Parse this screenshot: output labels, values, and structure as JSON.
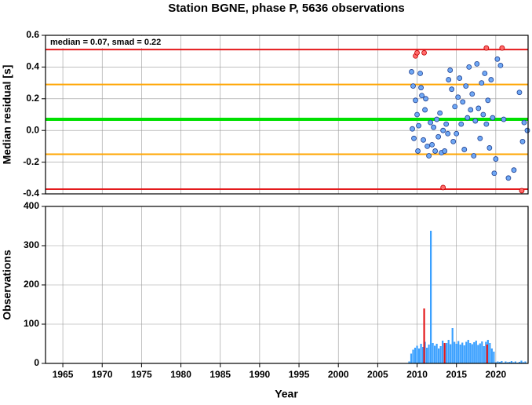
{
  "chart_data": [
    {
      "type": "scatter",
      "title": "Station BGNE, phase P, 5636 observations",
      "ylabel": "Median residual [s]",
      "annotation": "median = 0.07, smad = 0.22",
      "xlim": [
        1962.8,
        2024.1
      ],
      "ylim": [
        -0.4,
        0.6
      ],
      "yticks": [
        -0.4,
        -0.2,
        {
          "value": 0,
          "label": "0.0"
        },
        0.2,
        0.4,
        0.6
      ],
      "grid": true,
      "hlines": [
        {
          "value": 0.51,
          "color": "#e41a1c"
        },
        {
          "value": 0.29,
          "color": "#ffa500"
        },
        {
          "value": 0.07,
          "color": "#00e000"
        },
        {
          "value": -0.15,
          "color": "#ffa500"
        },
        {
          "value": -0.37,
          "color": "#e41a1c"
        }
      ],
      "series": [
        {
          "color": "#6fa8f5",
          "edgecolor": "#1f3f8f",
          "x": [
            2009.3,
            2009.4,
            2009.5,
            2009.6,
            2009.8,
            2010.0,
            2010.1,
            2010.2,
            2010.4,
            2010.5,
            2010.6,
            2010.8,
            2011.0,
            2011.1,
            2011.3,
            2011.5,
            2011.7,
            2011.9,
            2012.1,
            2012.3,
            2012.5,
            2012.7,
            2012.9,
            2013.1,
            2013.3,
            2013.5,
            2013.7,
            2013.9,
            2014.0,
            2014.2,
            2014.4,
            2014.6,
            2014.8,
            2015.0,
            2015.2,
            2015.4,
            2015.6,
            2015.8,
            2016.0,
            2016.2,
            2016.4,
            2016.6,
            2016.8,
            2017.0,
            2017.2,
            2017.4,
            2017.6,
            2017.8,
            2018.0,
            2018.2,
            2018.4,
            2018.6,
            2018.8,
            2019.0,
            2019.2,
            2019.4,
            2019.6,
            2019.8,
            2020.0,
            2020.2,
            2020.6,
            2021.0,
            2021.6,
            2022.3,
            2023.0,
            2023.4,
            2023.6,
            2024.0
          ],
          "values": [
            0.37,
            0.01,
            0.28,
            -0.05,
            0.19,
            0.1,
            -0.13,
            0.03,
            0.36,
            0.27,
            0.22,
            -0.06,
            0.13,
            0.2,
            -0.1,
            -0.16,
            0.05,
            -0.09,
            0.02,
            -0.13,
            0.07,
            -0.04,
            0.11,
            -0.14,
            0.0,
            -0.13,
            0.04,
            -0.02,
            0.32,
            0.38,
            0.26,
            -0.07,
            0.15,
            -0.02,
            0.21,
            0.33,
            0.04,
            0.18,
            -0.12,
            0.28,
            0.08,
            0.4,
            0.13,
            0.23,
            -0.16,
            0.06,
            0.42,
            0.14,
            -0.05,
            0.3,
            0.1,
            0.36,
            0.04,
            0.19,
            -0.11,
            0.32,
            0.08,
            -0.27,
            -0.18,
            0.45,
            0.41,
            0.07,
            -0.3,
            -0.25,
            0.24,
            -0.07,
            0.05,
            0.0
          ]
        },
        {
          "color": "#ff6b6b",
          "edgecolor": "#c00000",
          "x": [
            2009.8,
            2010.0,
            2010.9,
            2013.3,
            2018.8,
            2020.8,
            2023.3
          ],
          "values": [
            0.47,
            0.49,
            0.49,
            -0.36,
            0.52,
            0.52,
            -0.38
          ]
        }
      ]
    },
    {
      "type": "bar",
      "ylabel": "Observations",
      "xlabel": "Year",
      "xlim": [
        1962.8,
        2024.1
      ],
      "ylim": [
        0,
        400
      ],
      "yticks": [
        0,
        100,
        200,
        300,
        400
      ],
      "xticks": [
        1965,
        1970,
        1975,
        1980,
        1985,
        1990,
        1995,
        2000,
        2005,
        2010,
        2015,
        2020
      ],
      "grid": true,
      "series": [
        {
          "color": "#3aa0ff",
          "x": [
            2009.0,
            2009.25,
            2009.5,
            2009.75,
            2010.0,
            2010.25,
            2010.5,
            2010.75,
            2011.0,
            2011.25,
            2011.5,
            2011.75,
            2012.0,
            2012.25,
            2012.5,
            2012.75,
            2013.0,
            2013.25,
            2013.5,
            2013.75,
            2014.0,
            2014.25,
            2014.5,
            2014.75,
            2015.0,
            2015.25,
            2015.5,
            2015.75,
            2016.0,
            2016.25,
            2016.5,
            2016.75,
            2017.0,
            2017.25,
            2017.5,
            2017.75,
            2018.0,
            2018.25,
            2018.5,
            2018.75,
            2019.0,
            2019.25,
            2019.5,
            2019.75,
            2020.0,
            2020.25,
            2020.5,
            2020.75,
            2021.0,
            2021.25,
            2021.5,
            2021.75,
            2022.0,
            2022.25,
            2022.5,
            2022.75,
            2023.0,
            2023.25,
            2023.5,
            2023.75
          ],
          "values": [
            5,
            25,
            35,
            40,
            45,
            38,
            50,
            42,
            55,
            40,
            48,
            338,
            52,
            45,
            50,
            38,
            44,
            58,
            47,
            52,
            60,
            49,
            90,
            55,
            50,
            57,
            48,
            53,
            46,
            55,
            60,
            52,
            49,
            54,
            58,
            47,
            51,
            56,
            44,
            55,
            60,
            52,
            38,
            30,
            3,
            5,
            4,
            6,
            2,
            5,
            3,
            4,
            6,
            3,
            5,
            2,
            4,
            7,
            3,
            5
          ]
        },
        {
          "color": "#e41a1c",
          "x": [
            2010.9,
            2013.5,
            2018.9
          ],
          "values": [
            140,
            52,
            48
          ]
        }
      ]
    }
  ]
}
